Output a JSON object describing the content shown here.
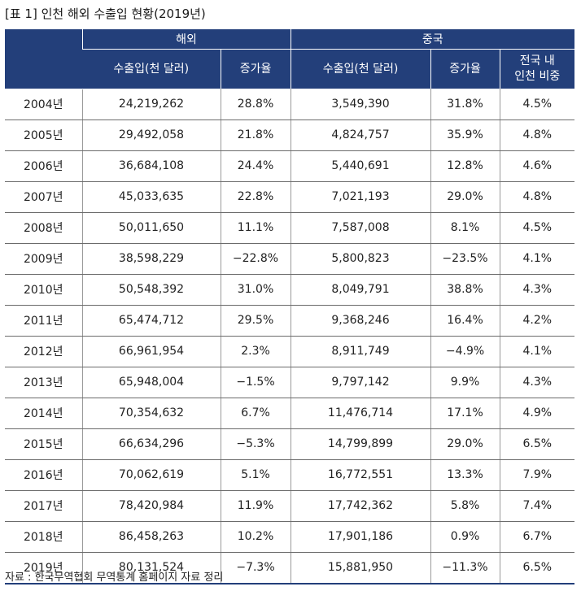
{
  "caption": "[표 1] 인천 해외 수출입 현황(2019년)",
  "header": {
    "group_overseas": "해외",
    "group_china": "중국",
    "col_overseas_trade": "수출입(천 달러)",
    "col_overseas_growth": "증가율",
    "col_china_trade": "수출입(천 달러)",
    "col_china_growth": "증가율",
    "col_share_line1": "전국 내",
    "col_share_line2": "인천 비중"
  },
  "rows": [
    {
      "year": "2004년",
      "overseas_trade": "24,219,262",
      "overseas_growth": "28.8%",
      "china_trade": "3,549,390",
      "china_growth": "31.8%",
      "share": "4.5%"
    },
    {
      "year": "2005년",
      "overseas_trade": "29,492,058",
      "overseas_growth": "21.8%",
      "china_trade": "4,824,757",
      "china_growth": "35.9%",
      "share": "4.8%"
    },
    {
      "year": "2006년",
      "overseas_trade": "36,684,108",
      "overseas_growth": "24.4%",
      "china_trade": "5,440,691",
      "china_growth": "12.8%",
      "share": "4.6%"
    },
    {
      "year": "2007년",
      "overseas_trade": "45,033,635",
      "overseas_growth": "22.8%",
      "china_trade": "7,021,193",
      "china_growth": "29.0%",
      "share": "4.8%"
    },
    {
      "year": "2008년",
      "overseas_trade": "50,011,650",
      "overseas_growth": "11.1%",
      "china_trade": "7,587,008",
      "china_growth": "8.1%",
      "share": "4.5%"
    },
    {
      "year": "2009년",
      "overseas_trade": "38,598,229",
      "overseas_growth": "−22.8%",
      "china_trade": "5,800,823",
      "china_growth": "−23.5%",
      "share": "4.1%"
    },
    {
      "year": "2010년",
      "overseas_trade": "50,548,392",
      "overseas_growth": "31.0%",
      "china_trade": "8,049,791",
      "china_growth": "38.8%",
      "share": "4.3%"
    },
    {
      "year": "2011년",
      "overseas_trade": "65,474,712",
      "overseas_growth": "29.5%",
      "china_trade": "9,368,246",
      "china_growth": "16.4%",
      "share": "4.2%"
    },
    {
      "year": "2012년",
      "overseas_trade": "66,961,954",
      "overseas_growth": "2.3%",
      "china_trade": "8,911,749",
      "china_growth": "−4.9%",
      "share": "4.1%"
    },
    {
      "year": "2013년",
      "overseas_trade": "65,948,004",
      "overseas_growth": "−1.5%",
      "china_trade": "9,797,142",
      "china_growth": "9.9%",
      "share": "4.3%"
    },
    {
      "year": "2014년",
      "overseas_trade": "70,354,632",
      "overseas_growth": "6.7%",
      "china_trade": "11,476,714",
      "china_growth": "17.1%",
      "share": "4.9%"
    },
    {
      "year": "2015년",
      "overseas_trade": "66,634,296",
      "overseas_growth": "−5.3%",
      "china_trade": "14,799,899",
      "china_growth": "29.0%",
      "share": "6.5%"
    },
    {
      "year": "2016년",
      "overseas_trade": "70,062,619",
      "overseas_growth": "5.1%",
      "china_trade": "16,772,551",
      "china_growth": "13.3%",
      "share": "7.9%"
    },
    {
      "year": "2017년",
      "overseas_trade": "78,420,984",
      "overseas_growth": "11.9%",
      "china_trade": "17,742,362",
      "china_growth": "5.8%",
      "share": "7.4%"
    },
    {
      "year": "2018년",
      "overseas_trade": "86,458,263",
      "overseas_growth": "10.2%",
      "china_trade": "17,901,186",
      "china_growth": "0.9%",
      "share": "6.7%"
    },
    {
      "year": "2019년",
      "overseas_trade": "80,131,524",
      "overseas_growth": "−7.3%",
      "china_trade": "15,881,950",
      "china_growth": "−11.3%",
      "share": "6.5%"
    }
  ],
  "source": "자료 : 한국무역협회 무역통계 홈페이지 자료 정리",
  "colors": {
    "header_bg": "#233f7a",
    "header_text": "#ffffff"
  }
}
